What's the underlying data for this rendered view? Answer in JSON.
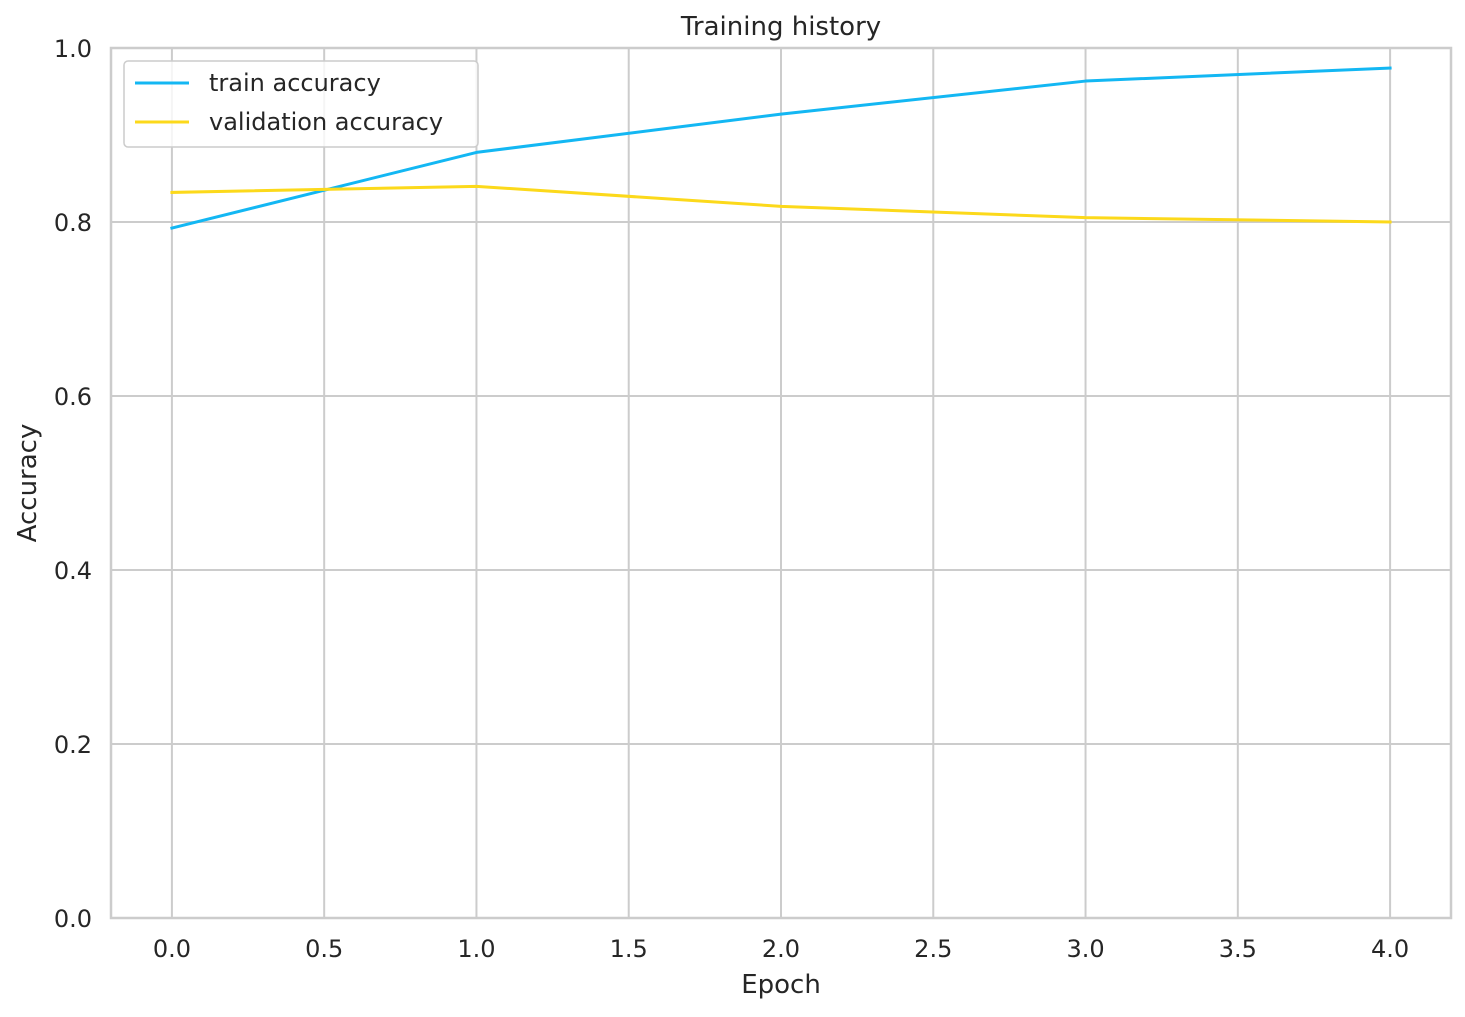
{
  "chart_data": {
    "type": "line",
    "title": "Training history",
    "xlabel": "Epoch",
    "ylabel": "Accuracy",
    "xlim": [
      -0.2,
      4.2
    ],
    "ylim": [
      0.0,
      1.0
    ],
    "grid": true,
    "legend_position": "upper-left",
    "xticks": [
      0.0,
      0.5,
      1.0,
      1.5,
      2.0,
      2.5,
      3.0,
      3.5,
      4.0
    ],
    "xtick_labels": [
      "0.0",
      "0.5",
      "1.0",
      "1.5",
      "2.0",
      "2.5",
      "3.0",
      "3.5",
      "4.0"
    ],
    "yticks": [
      0.0,
      0.2,
      0.4,
      0.6,
      0.8,
      1.0
    ],
    "ytick_labels": [
      "0.0",
      "0.2",
      "0.4",
      "0.6",
      "0.8",
      "1.0"
    ],
    "x": [
      0,
      1,
      2,
      3,
      4
    ],
    "series": [
      {
        "name": "train accuracy",
        "color": "#13b7f3",
        "values": [
          0.793,
          0.88,
          0.924,
          0.962,
          0.977
        ]
      },
      {
        "name": "validation accuracy",
        "color": "#fcd91b",
        "values": [
          0.834,
          0.841,
          0.818,
          0.805,
          0.8
        ]
      }
    ]
  }
}
